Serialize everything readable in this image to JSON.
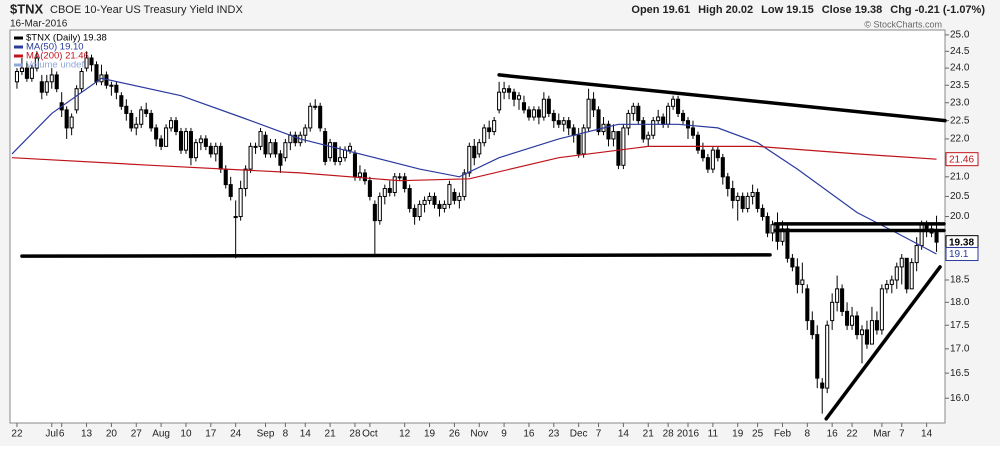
{
  "chart_data": {
    "type": "candlestick",
    "title": "$TNX",
    "subtitle": "CBOE 10-Year US Treasury Yield INDX",
    "date": "16-Mar-2016",
    "quote": [
      "Open 19.61",
      "High 20.02",
      "Low 19.15",
      "Close 19.38",
      "Chg -0.21 (-1.07%)"
    ],
    "source": "© StockCharts.com",
    "legend": [
      {
        "text": "$TNX (Daily) 19.38",
        "color": "#000000"
      },
      {
        "text": "MA(50) 19.10",
        "color": "#2b3a9e"
      },
      {
        "text": "MA(200) 21.46",
        "color": "#c0141c"
      },
      {
        "text": "Volume undef",
        "color": "#8fa6d8"
      }
    ],
    "log": true,
    "candle_color": "#000000",
    "ylim": [
      15.52,
      25.15
    ],
    "yticks": [
      {
        "value": 16,
        "label": "16.0"
      },
      {
        "value": 16.5,
        "label": "16.5"
      },
      {
        "value": 17,
        "label": "17.0"
      },
      {
        "value": 17.5,
        "label": "17.5"
      },
      {
        "value": 18,
        "label": "18.0"
      },
      {
        "value": 18.5,
        "label": "18.5"
      },
      {
        "value": 20,
        "label": "20.0"
      },
      {
        "value": 20.5,
        "label": "20.5"
      },
      {
        "value": 21,
        "label": "21.0"
      },
      {
        "value": 21.5,
        "label": "21.5"
      },
      {
        "value": 22,
        "label": "22.0"
      },
      {
        "value": 22.5,
        "label": "22.5"
      },
      {
        "value": 23,
        "label": "23.0"
      },
      {
        "value": 23.5,
        "label": "23.5"
      },
      {
        "value": 24,
        "label": "24.0"
      },
      {
        "value": 24.5,
        "label": "24.5"
      },
      {
        "value": 25,
        "label": "25.0"
      }
    ],
    "xlim": [
      -1.4,
      186.7
    ],
    "xticks": [
      {
        "value": 0,
        "label": "22"
      },
      {
        "value": 7,
        "label": "Jul"
      },
      {
        "value": 9,
        "label": "6"
      },
      {
        "value": 14,
        "label": "13"
      },
      {
        "value": 19,
        "label": "20"
      },
      {
        "value": 24,
        "label": "27"
      },
      {
        "value": 29,
        "label": "Aug"
      },
      {
        "value": 34,
        "label": "10"
      },
      {
        "value": 39,
        "label": "17"
      },
      {
        "value": 44,
        "label": "24"
      },
      {
        "value": 50,
        "label": "Sep"
      },
      {
        "value": 54,
        "label": "8"
      },
      {
        "value": 58,
        "label": "14"
      },
      {
        "value": 63,
        "label": "21"
      },
      {
        "value": 68,
        "label": "28"
      },
      {
        "value": 71,
        "label": "Oct"
      },
      {
        "value": 78,
        "label": "12"
      },
      {
        "value": 83,
        "label": "19"
      },
      {
        "value": 88,
        "label": "26"
      },
      {
        "value": 93,
        "label": "Nov"
      },
      {
        "value": 98,
        "label": "9"
      },
      {
        "value": 103,
        "label": "16"
      },
      {
        "value": 108,
        "label": "23"
      },
      {
        "value": 113,
        "label": "Dec"
      },
      {
        "value": 117,
        "label": "7"
      },
      {
        "value": 122,
        "label": "14"
      },
      {
        "value": 127,
        "label": "21"
      },
      {
        "value": 131,
        "label": "28"
      },
      {
        "value": 135,
        "label": "2016"
      },
      {
        "value": 140,
        "label": "11"
      },
      {
        "value": 145,
        "label": "19"
      },
      {
        "value": 149,
        "label": "25"
      },
      {
        "value": 154,
        "label": "Feb"
      },
      {
        "value": 159,
        "label": "8"
      },
      {
        "value": 164,
        "label": "16"
      },
      {
        "value": 168,
        "label": "22"
      },
      {
        "value": 174,
        "label": "Mar"
      },
      {
        "value": 178,
        "label": "7"
      },
      {
        "value": 183,
        "label": "14"
      }
    ],
    "ohlc": [
      [
        23.6,
        24.0,
        23.4,
        23.9
      ],
      [
        23.9,
        24.3,
        23.8,
        24.0
      ],
      [
        24.0,
        24.2,
        23.6,
        23.7
      ],
      [
        23.7,
        24.1,
        23.6,
        24.0
      ],
      [
        24.0,
        24.5,
        23.9,
        24.3
      ],
      [
        23.6,
        23.8,
        23.1,
        23.3
      ],
      [
        23.3,
        23.8,
        23.2,
        23.6
      ],
      [
        23.6,
        24.0,
        23.4,
        23.8
      ],
      [
        23.8,
        23.9,
        23.3,
        23.4
      ],
      [
        23.0,
        23.3,
        22.6,
        22.8
      ],
      [
        22.8,
        22.9,
        22.0,
        22.3
      ],
      [
        22.3,
        22.7,
        22.1,
        22.6
      ],
      [
        22.8,
        23.5,
        22.7,
        23.4
      ],
      [
        23.4,
        24.0,
        23.3,
        23.9
      ],
      [
        24.0,
        24.5,
        23.9,
        24.3
      ],
      [
        24.3,
        24.4,
        23.9,
        24.1
      ],
      [
        24.1,
        24.2,
        23.5,
        23.6
      ],
      [
        23.6,
        24.1,
        23.5,
        23.8
      ],
      [
        23.8,
        23.9,
        23.4,
        23.5
      ],
      [
        23.5,
        23.6,
        23.2,
        23.5
      ],
      [
        23.5,
        23.6,
        23.1,
        23.3
      ],
      [
        23.2,
        23.3,
        22.8,
        22.9
      ],
      [
        22.9,
        23.1,
        22.5,
        22.7
      ],
      [
        22.7,
        22.8,
        22.2,
        22.3
      ],
      [
        22.3,
        22.6,
        22.1,
        22.4
      ],
      [
        22.4,
        22.9,
        22.3,
        22.8
      ],
      [
        22.8,
        23.0,
        22.6,
        22.7
      ],
      [
        22.7,
        22.8,
        22.2,
        22.3
      ],
      [
        22.3,
        22.4,
        21.8,
        22.0
      ],
      [
        22.0,
        22.1,
        21.7,
        21.8
      ],
      [
        21.8,
        22.4,
        21.8,
        22.3
      ],
      [
        22.3,
        22.6,
        22.2,
        22.5
      ],
      [
        22.5,
        22.6,
        22.1,
        22.2
      ],
      [
        22.2,
        22.3,
        21.6,
        21.7
      ],
      [
        21.7,
        22.3,
        21.6,
        22.2
      ],
      [
        22.2,
        22.3,
        21.3,
        21.5
      ],
      [
        21.5,
        22.0,
        21.4,
        21.9
      ],
      [
        21.9,
        22.1,
        21.7,
        22.0
      ],
      [
        22.0,
        22.1,
        21.7,
        21.8
      ],
      [
        21.8,
        21.9,
        21.5,
        21.6
      ],
      [
        21.6,
        21.9,
        21.4,
        21.8
      ],
      [
        21.8,
        21.9,
        21.1,
        21.2
      ],
      [
        21.2,
        21.3,
        20.7,
        20.8
      ],
      [
        20.8,
        21.0,
        20.4,
        20.5
      ],
      [
        20.0,
        20.4,
        19.0,
        20.0
      ],
      [
        20.0,
        20.9,
        19.9,
        20.7
      ],
      [
        20.7,
        21.3,
        20.5,
        21.2
      ],
      [
        21.2,
        21.9,
        21.1,
        21.8
      ],
      [
        21.8,
        21.9,
        21.6,
        21.8
      ],
      [
        21.8,
        22.3,
        21.7,
        22.2
      ],
      [
        22.1,
        22.2,
        21.5,
        21.6
      ],
      [
        21.6,
        22.0,
        21.5,
        21.9
      ],
      [
        21.9,
        22.0,
        21.5,
        21.6
      ],
      [
        21.6,
        21.7,
        21.1,
        21.3
      ],
      [
        21.5,
        22.0,
        21.4,
        21.9
      ],
      [
        21.9,
        22.2,
        21.7,
        22.1
      ],
      [
        22.1,
        22.2,
        21.8,
        21.9
      ],
      [
        21.9,
        22.2,
        21.8,
        22.1
      ],
      [
        22.1,
        22.4,
        21.9,
        22.3
      ],
      [
        22.3,
        23.0,
        22.2,
        22.9
      ],
      [
        22.9,
        23.1,
        22.8,
        22.9
      ],
      [
        22.9,
        23.0,
        22.2,
        22.3
      ],
      [
        22.2,
        22.3,
        21.3,
        21.4
      ],
      [
        21.5,
        22.0,
        21.4,
        21.9
      ],
      [
        21.9,
        21.9,
        21.3,
        21.4
      ],
      [
        21.4,
        21.8,
        21.3,
        21.5
      ],
      [
        21.5,
        21.8,
        21.4,
        21.7
      ],
      [
        21.7,
        21.9,
        21.6,
        21.8
      ],
      [
        21.6,
        21.7,
        20.9,
        21.0
      ],
      [
        21.0,
        21.3,
        20.9,
        21.1
      ],
      [
        21.1,
        21.2,
        20.8,
        20.9
      ],
      [
        20.9,
        21.0,
        20.4,
        20.5
      ],
      [
        20.3,
        20.4,
        19.1,
        19.9
      ],
      [
        19.9,
        20.6,
        19.8,
        20.5
      ],
      [
        20.5,
        20.8,
        20.3,
        20.7
      ],
      [
        20.7,
        20.9,
        20.5,
        20.6
      ],
      [
        20.6,
        21.1,
        20.5,
        21.0
      ],
      [
        21.0,
        21.1,
        20.9,
        21.0
      ],
      [
        21.0,
        21.1,
        20.6,
        20.7
      ],
      [
        20.7,
        20.8,
        20.1,
        20.2
      ],
      [
        20.2,
        20.3,
        19.8,
        20.0
      ],
      [
        20.0,
        20.4,
        19.9,
        20.3
      ],
      [
        20.3,
        20.5,
        20.1,
        20.4
      ],
      [
        20.4,
        20.6,
        20.3,
        20.5
      ],
      [
        20.5,
        20.6,
        20.2,
        20.3
      ],
      [
        20.3,
        20.4,
        20.0,
        20.2
      ],
      [
        20.2,
        20.4,
        20.1,
        20.3
      ],
      [
        20.3,
        20.9,
        20.2,
        20.8
      ],
      [
        20.6,
        20.7,
        20.3,
        20.4
      ],
      [
        20.4,
        20.6,
        20.2,
        20.5
      ],
      [
        20.5,
        21.2,
        20.4,
        21.1
      ],
      [
        21.1,
        21.9,
        21.0,
        21.8
      ],
      [
        21.8,
        22.0,
        21.3,
        21.5
      ],
      [
        21.6,
        22.0,
        21.5,
        21.9
      ],
      [
        21.9,
        22.4,
        21.8,
        22.3
      ],
      [
        22.3,
        22.5,
        22.0,
        22.2
      ],
      [
        22.2,
        22.6,
        22.1,
        22.5
      ],
      [
        22.8,
        23.6,
        22.7,
        23.3
      ],
      [
        23.3,
        23.6,
        23.1,
        23.4
      ],
      [
        23.4,
        23.5,
        23.1,
        23.3
      ],
      [
        23.3,
        23.4,
        22.9,
        23.1
      ],
      [
        23.1,
        23.3,
        22.8,
        23.2
      ],
      [
        23.0,
        23.2,
        22.7,
        22.8
      ],
      [
        22.8,
        22.9,
        22.5,
        22.6
      ],
      [
        22.6,
        22.9,
        22.5,
        22.8
      ],
      [
        22.8,
        22.9,
        22.4,
        22.6
      ],
      [
        22.6,
        23.3,
        22.5,
        23.1
      ],
      [
        23.1,
        23.2,
        22.6,
        22.7
      ],
      [
        22.7,
        22.8,
        22.3,
        22.5
      ],
      [
        22.5,
        22.7,
        22.3,
        22.4
      ],
      [
        22.4,
        22.6,
        22.2,
        22.5
      ],
      [
        22.5,
        22.6,
        22.1,
        22.3
      ],
      [
        22.3,
        22.4,
        21.9,
        22.1
      ],
      [
        22.1,
        22.3,
        21.5,
        21.6
      ],
      [
        21.6,
        22.4,
        21.5,
        22.3
      ],
      [
        22.3,
        23.4,
        22.2,
        23.1
      ],
      [
        23.1,
        23.3,
        22.6,
        22.8
      ],
      [
        22.8,
        22.9,
        22.1,
        22.2
      ],
      [
        22.2,
        22.6,
        22.1,
        22.4
      ],
      [
        22.4,
        22.5,
        21.8,
        22.0
      ],
      [
        22.0,
        22.4,
        21.8,
        22.2
      ],
      [
        22.2,
        22.2,
        21.2,
        21.3
      ],
      [
        21.3,
        22.4,
        21.2,
        22.3
      ],
      [
        22.3,
        22.8,
        22.1,
        22.7
      ],
      [
        22.7,
        23.0,
        22.5,
        22.9
      ],
      [
        22.9,
        23.0,
        22.4,
        22.5
      ],
      [
        22.5,
        22.6,
        21.9,
        22.0
      ],
      [
        22.0,
        22.2,
        21.8,
        22.1
      ],
      [
        22.1,
        22.6,
        22.0,
        22.5
      ],
      [
        22.5,
        22.8,
        22.4,
        22.6
      ],
      [
        22.6,
        22.7,
        22.3,
        22.4
      ],
      [
        22.4,
        23.0,
        22.3,
        22.9
      ],
      [
        22.9,
        23.2,
        22.8,
        23.1
      ],
      [
        23.1,
        23.2,
        22.6,
        22.7
      ],
      [
        22.7,
        22.8,
        22.4,
        22.5
      ],
      [
        22.5,
        22.6,
        22.0,
        22.3
      ],
      [
        22.3,
        22.5,
        22.0,
        22.1
      ],
      [
        22.1,
        22.2,
        21.6,
        21.7
      ],
      [
        21.7,
        21.9,
        21.4,
        21.5
      ],
      [
        21.5,
        21.6,
        21.1,
        21.2
      ],
      [
        21.2,
        21.8,
        21.1,
        21.7
      ],
      [
        21.7,
        21.8,
        21.4,
        21.5
      ],
      [
        21.5,
        21.6,
        20.8,
        21.0
      ],
      [
        21.0,
        21.1,
        20.5,
        20.7
      ],
      [
        20.7,
        20.9,
        20.2,
        20.4
      ],
      [
        20.4,
        20.6,
        19.9,
        20.5
      ],
      [
        20.5,
        20.6,
        20.1,
        20.2
      ],
      [
        20.2,
        20.6,
        20.1,
        20.5
      ],
      [
        20.5,
        20.8,
        20.3,
        20.6
      ],
      [
        20.6,
        20.7,
        20.1,
        20.2
      ],
      [
        20.2,
        20.3,
        19.9,
        20.0
      ],
      [
        20.0,
        20.1,
        19.5,
        19.6
      ],
      [
        19.6,
        19.9,
        19.4,
        19.8
      ],
      [
        19.8,
        20.1,
        19.2,
        19.4
      ],
      [
        19.4,
        19.9,
        19.3,
        19.7
      ],
      [
        19.7,
        19.8,
        18.9,
        19.0
      ],
      [
        19.0,
        19.1,
        18.7,
        18.8
      ],
      [
        18.8,
        19.0,
        18.2,
        18.4
      ],
      [
        18.4,
        18.9,
        18.2,
        18.5
      ],
      [
        18.3,
        18.4,
        17.4,
        17.6
      ],
      [
        17.6,
        17.8,
        17.2,
        17.3
      ],
      [
        17.3,
        17.5,
        16.2,
        16.4
      ],
      [
        16.3,
        16.4,
        15.7,
        16.2
      ],
      [
        16.2,
        17.6,
        16.1,
        17.5
      ],
      [
        17.6,
        18.2,
        17.4,
        18.0
      ],
      [
        18.0,
        18.6,
        17.8,
        18.3
      ],
      [
        18.3,
        18.4,
        17.7,
        17.8
      ],
      [
        17.8,
        18.0,
        17.4,
        17.5
      ],
      [
        17.5,
        17.9,
        17.4,
        17.7
      ],
      [
        17.7,
        17.8,
        17.2,
        17.3
      ],
      [
        17.3,
        17.5,
        16.7,
        17.4
      ],
      [
        17.4,
        17.6,
        17.0,
        17.1
      ],
      [
        17.1,
        17.9,
        17.1,
        17.6
      ],
      [
        17.6,
        17.8,
        17.3,
        17.4
      ],
      [
        17.4,
        18.4,
        17.3,
        18.3
      ],
      [
        18.3,
        18.5,
        18.2,
        18.4
      ],
      [
        18.4,
        18.6,
        18.2,
        18.5
      ],
      [
        18.5,
        18.9,
        18.3,
        18.8
      ],
      [
        18.8,
        19.1,
        18.4,
        19.0
      ],
      [
        19.0,
        19.0,
        18.2,
        18.3
      ],
      [
        18.3,
        19.0,
        18.3,
        18.9
      ],
      [
        18.9,
        19.5,
        18.7,
        19.3
      ],
      [
        19.3,
        19.9,
        19.2,
        19.8
      ],
      [
        19.8,
        19.9,
        19.5,
        19.7
      ],
      [
        19.7,
        19.8,
        19.5,
        19.6
      ],
      [
        19.61,
        20.02,
        19.15,
        19.38
      ]
    ],
    "series": [
      {
        "name": "MA(50)",
        "color": "#2b3a9e",
        "x": [
          -1,
          7,
          17,
          33,
          45,
          57,
          69,
          81,
          89,
          97,
          109,
          121,
          133,
          141,
          149,
          157,
          169,
          177,
          185
        ],
        "values": [
          21.6,
          22.7,
          23.7,
          23.2,
          22.6,
          22.0,
          21.6,
          21.2,
          21.0,
          21.5,
          22.0,
          22.4,
          22.4,
          22.3,
          21.9,
          21.2,
          20.1,
          19.6,
          19.1
        ]
      },
      {
        "name": "MA(200)",
        "color": "#c0141c",
        "x": [
          -1,
          27,
          57,
          77,
          91,
          109,
          127,
          149,
          169,
          185
        ],
        "values": [
          21.5,
          21.3,
          21.1,
          20.9,
          20.95,
          21.5,
          21.8,
          21.8,
          21.6,
          21.46
        ]
      }
    ],
    "trendlines": [
      {
        "x": [
          97,
          186.7
        ],
        "values": [
          23.8,
          22.5
        ]
      },
      {
        "x": [
          1,
          151.5
        ],
        "values": [
          19.05,
          19.08
        ]
      },
      {
        "x": [
          152.5,
          186.5
        ],
        "values": [
          19.82,
          19.82
        ]
      },
      {
        "x": [
          152.5,
          186.5
        ],
        "values": [
          19.66,
          19.66
        ]
      },
      {
        "x": [
          162.8,
          185.7
        ],
        "values": [
          15.6,
          18.8
        ]
      }
    ],
    "price_labels": [
      {
        "value": 21.46,
        "color": "#c0141c",
        "bold": false
      },
      {
        "value": 19.38,
        "color": "#000000",
        "bold": true
      },
      {
        "value": 19.1,
        "color": "#2b3a9e",
        "bold": false
      }
    ]
  }
}
